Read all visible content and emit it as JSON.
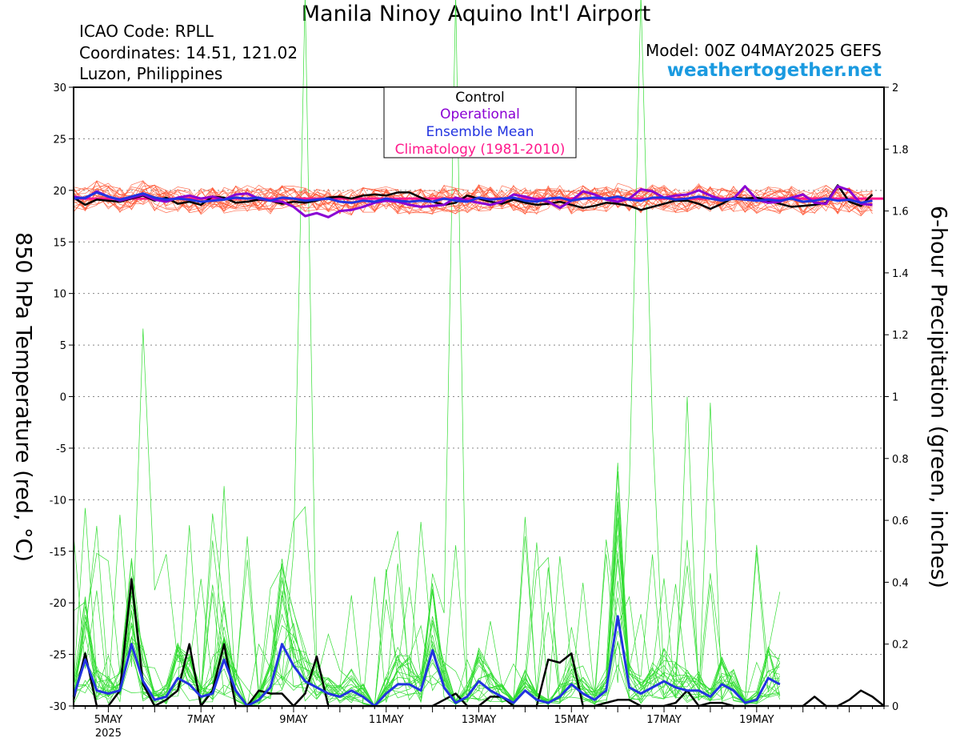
{
  "header": {
    "title": "Manila Ninoy Aquino Int'l Airport",
    "icao": "ICAO Code: RPLL",
    "coords": "Coordinates: 14.51, 121.02",
    "region": "Luzon, Philippines",
    "model": "Model: 00Z 04MAY2025 GEFS",
    "site": "weathertogether.net"
  },
  "colors": {
    "control": "#000000",
    "operational": "#8a00d4",
    "ensemble_mean": "#2233e0",
    "climatology": "#ff1a8c",
    "members_temp": "#ff5533",
    "members_precip": "#33dd33"
  },
  "chart_data": {
    "type": "line",
    "ylabel": "850 hPa Temperature (red, °C)",
    "y2label": "6-hour Precipitation (green, inches)",
    "ylim": [
      -30,
      30
    ],
    "y2lim": [
      0,
      2
    ],
    "yticks": [
      "30",
      "25",
      "20",
      "15",
      "10",
      "5",
      "0",
      "-5",
      "-10",
      "-15",
      "-20",
      "-25",
      "-30"
    ],
    "y2ticks": [
      "2",
      "1.8",
      "1.6",
      "1.4",
      "1.2",
      "1",
      "0.8",
      "0.6",
      "0.4",
      "0.2",
      "0"
    ],
    "x_start": "2025-05-04 06Z",
    "x_step_hours": 6,
    "xticks": [
      {
        "label": "5MAY",
        "sub": "2025",
        "i": 3
      },
      {
        "label": "7MAY",
        "sub": "",
        "i": 11
      },
      {
        "label": "9MAY",
        "sub": "",
        "i": 19
      },
      {
        "label": "11MAY",
        "sub": "",
        "i": 27
      },
      {
        "label": "13MAY",
        "sub": "",
        "i": 35
      },
      {
        "label": "15MAY",
        "sub": "",
        "i": 43
      },
      {
        "label": "17MAY",
        "sub": "",
        "i": 51
      },
      {
        "label": "19MAY",
        "sub": "",
        "i": 59
      }
    ],
    "grid": true,
    "legend": {
      "position": "top-center",
      "entries": [
        "Control",
        "Operational",
        "Ensemble Mean",
        "Climatology (1981-2010)"
      ]
    },
    "climatology_temp": 19.2,
    "series": [
      {
        "name": "Control",
        "axis": "temp",
        "values": [
          19.3,
          18.6,
          19.1,
          19.0,
          18.9,
          19.2,
          19.5,
          19.0,
          19.3,
          18.7,
          18.9,
          18.6,
          19.4,
          19.3,
          18.8,
          18.9,
          19.1,
          19.0,
          18.7,
          18.9,
          18.8,
          19.0,
          19.3,
          19.4,
          19.2,
          19.5,
          19.6,
          19.5,
          19.8,
          19.8,
          19.3,
          18.9,
          18.6,
          18.8,
          19.5,
          19.2,
          18.9,
          18.7,
          19.1,
          18.8,
          18.6,
          18.7,
          18.9,
          18.6,
          18.3,
          18.5,
          18.8,
          18.7,
          18.5,
          18.1,
          18.4,
          18.7,
          19.0,
          19.0,
          18.7,
          18.2,
          18.7,
          19.3,
          19.2,
          19.3,
          19.0,
          18.7,
          18.4,
          18.5,
          18.6,
          18.8,
          20.5,
          18.9,
          18.5,
          19.6
        ]
      },
      {
        "name": "Operational",
        "axis": "temp",
        "values": [
          19.4,
          19.2,
          19.9,
          19.4,
          19.0,
          19.3,
          19.6,
          19.1,
          18.9,
          19.3,
          19.5,
          19.2,
          19.4,
          19.1,
          19.6,
          19.7,
          19.2,
          19.0,
          18.9,
          18.4,
          17.5,
          17.8,
          17.4,
          18.0,
          18.1,
          18.4,
          18.8,
          19.0,
          18.9,
          18.6,
          18.4,
          18.5,
          18.6,
          19.3,
          19.0,
          18.8,
          18.6,
          18.9,
          19.6,
          19.4,
          19.1,
          18.9,
          18.3,
          19.0,
          19.9,
          19.6,
          19.1,
          18.9,
          19.2,
          20.1,
          19.9,
          19.3,
          19.5,
          19.6,
          20.0,
          19.5,
          19.1,
          19.2,
          20.4,
          19.1,
          18.8,
          18.9,
          19.3,
          19.6,
          18.8,
          18.7,
          20.4,
          20.0,
          18.7,
          18.6
        ]
      },
      {
        "name": "Ensemble Mean",
        "axis": "temp",
        "values": [
          19.2,
          19.3,
          19.8,
          19.4,
          19.1,
          19.4,
          19.7,
          19.3,
          19.1,
          19.2,
          19.1,
          18.9,
          19.0,
          19.1,
          19.3,
          19.2,
          19.3,
          19.0,
          19.3,
          19.2,
          19.0,
          19.1,
          19.2,
          18.9,
          18.8,
          19.0,
          18.9,
          19.2,
          19.0,
          18.9,
          19.0,
          18.9,
          19.2,
          19.0,
          18.9,
          19.3,
          19.1,
          19.2,
          19.3,
          19.0,
          18.9,
          19.2,
          19.3,
          19.0,
          19.2,
          19.3,
          19.2,
          19.4,
          19.1,
          19.0,
          19.3,
          19.3,
          19.1,
          19.2,
          19.4,
          19.2,
          19.0,
          19.2,
          19.1,
          19.0,
          19.1,
          19.0,
          19.2,
          18.9,
          19.0,
          19.2,
          19.0,
          19.1,
          18.8,
          19.0
        ]
      },
      {
        "name": "Control",
        "axis": "precip",
        "values": [
          0.02,
          0.17,
          0.0,
          0.0,
          0.05,
          0.41,
          0.07,
          0.0,
          0.02,
          0.05,
          0.2,
          0.0,
          0.05,
          0.2,
          0.0,
          0.0,
          0.05,
          0.04,
          0.04,
          0.0,
          0.04,
          0.16,
          0.0,
          0.0,
          0.0,
          0.0,
          0.0,
          0.0,
          0.0,
          0.0,
          0.0,
          0.0,
          0.02,
          0.04,
          0.0,
          0.0,
          0.03,
          0.03,
          0.0,
          0.0,
          0.0,
          0.15,
          0.14,
          0.17,
          0.0,
          0.0,
          0.01,
          0.02,
          0.02,
          0.0,
          0.0,
          0.0,
          0.01,
          0.05,
          0.0,
          0.01,
          0.01,
          0.0,
          0.0,
          0.0,
          0.0,
          0.0,
          0.0,
          0.0,
          0.03,
          0.0,
          0.0,
          0.02,
          0.05,
          0.03,
          0.0
        ]
      },
      {
        "name": "Ensemble Mean",
        "axis": "precip",
        "values": [
          0.03,
          0.15,
          0.05,
          0.04,
          0.05,
          0.2,
          0.08,
          0.02,
          0.03,
          0.09,
          0.07,
          0.03,
          0.04,
          0.15,
          0.05,
          0.0,
          0.02,
          0.06,
          0.2,
          0.13,
          0.08,
          0.06,
          0.04,
          0.03,
          0.05,
          0.03,
          0.0,
          0.04,
          0.07,
          0.07,
          0.05,
          0.18,
          0.06,
          0.01,
          0.03,
          0.08,
          0.05,
          0.03,
          0.01,
          0.05,
          0.02,
          0.01,
          0.03,
          0.07,
          0.04,
          0.02,
          0.05,
          0.29,
          0.06,
          0.04,
          0.06,
          0.08,
          0.06,
          0.05,
          0.05,
          0.03,
          0.07,
          0.05,
          0.01,
          0.02,
          0.09,
          0.07
        ]
      }
    ]
  }
}
